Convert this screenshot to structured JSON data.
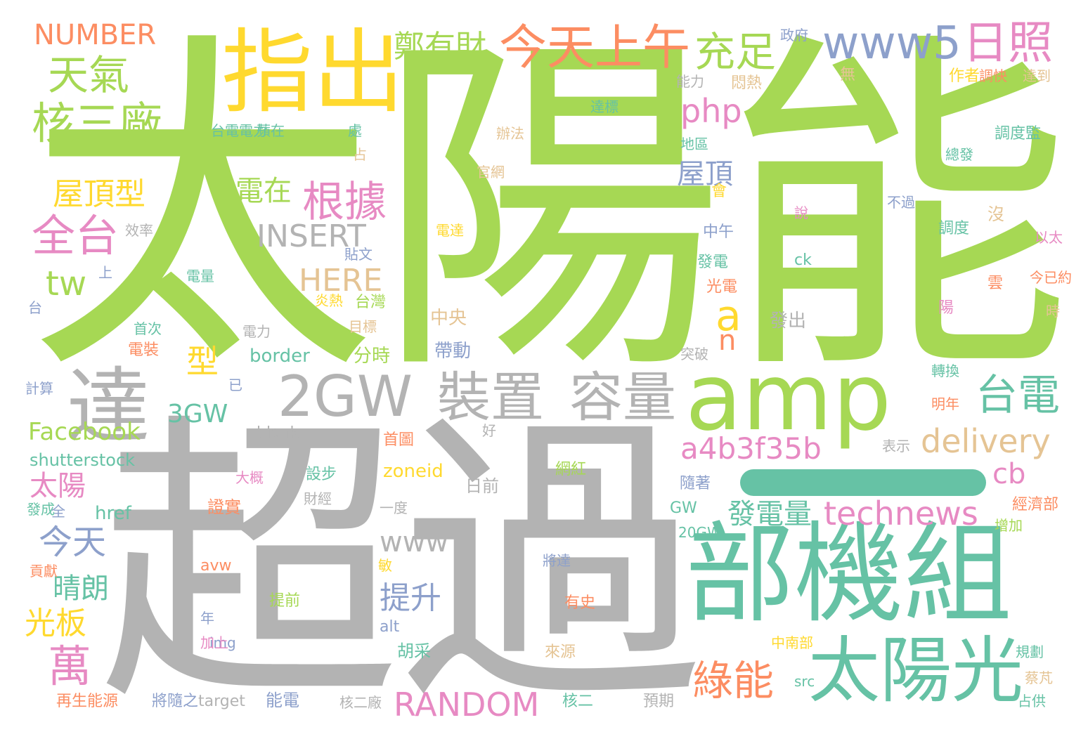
{
  "words": {
    "w1": "太陽能",
    "w2": "超過",
    "w3": "部機組",
    "w4": "指出",
    "w5": "amp",
    "w6": "達",
    "w7": "2GW",
    "w8": "裝置",
    "w9": "容量",
    "w10": "太陽光",
    "w11": "天氣",
    "w12": "核三廠",
    "w13": "今天上午",
    "w14": "充足",
    "w15": "www5",
    "w16": "日照",
    "w17": "NUMBER",
    "w18": "鄭有財",
    "w19": "php",
    "w20": "根據",
    "w21": "全台",
    "w22": "屋頂型",
    "w23": "電在",
    "w24": "INSERT",
    "w25": "HERE",
    "w26": "tw",
    "w27": "a",
    "w28": "n",
    "w29": "屋頂",
    "w30": "台電",
    "w31": "delivery",
    "w32": "a4b3f35b",
    "w33": "cb",
    "w34": "technews",
    "w35": "發電量",
    "w36": "太陽",
    "w37": "今天",
    "w38": "晴朗",
    "w39": "光板",
    "w40": "萬",
    "w41": "綠能",
    "w42": "RANDOM",
    "w43": "提升",
    "w44": "www",
    "w45": "3GW",
    "w46": "型",
    "w47": "Facebook",
    "w48": "shutterstock",
    "w49": "blank",
    "w50": "zoneid",
    "w51": "href",
    "w52": "border",
    "w53": "帶動",
    "w54": "分時",
    "w55": "中央",
    "w56": "台灣",
    "w57": "目標",
    "w58": "炎熱",
    "w59": "電裝",
    "w60": "首次",
    "w61": "電量",
    "w62": "台",
    "w63": "上",
    "w64": "效率",
    "w65": "計算",
    "w66": "已",
    "w67": "電力",
    "w68": "發出",
    "w69": "突破",
    "w70": "轉換",
    "w71": "明年",
    "w72": "好",
    "w73": "首圖",
    "w74": "表示",
    "w75": "設步",
    "w76": "大概",
    "w77": "網紅",
    "w78": "日前",
    "w79": "財經",
    "w80": "一度",
    "w81": "證實",
    "w82": "全",
    "w83": "發成",
    "w84": "隨著",
    "w85": "GW",
    "w86": "20GW",
    "w87": "將達",
    "w88": "avw",
    "w89": "敏",
    "w90": "貢獻",
    "w91": "提前",
    "w92": "有史",
    "w93": "年",
    "w94": "img",
    "w95": "alt",
    "w96": "胡采",
    "w97": "加上",
    "w98": "中南部",
    "w99": "來源",
    "w100": "再生能源",
    "w101": "src",
    "w102": "將隨之",
    "w103": "target",
    "w104": "能電",
    "w105": "核二廠",
    "w106": "核二",
    "w107": "預期",
    "w108": "規劃",
    "w109": "蔡芃",
    "w110": "占供",
    "w111": "經濟部",
    "w112": "增加",
    "w113": "政府",
    "w114": "能力",
    "w115": "悶熱",
    "w116": "無",
    "w117": "作者",
    "w118": "調快",
    "w119": "達到",
    "w120": "達標",
    "w121": "台電電力",
    "w122": "蘋在",
    "w123": "處",
    "w124": "占",
    "w125": "辦法",
    "w126": "調度監",
    "w127": "地區",
    "w128": "總發",
    "w129": "官網",
    "w130": "會",
    "w131": "不過",
    "w132": "說",
    "w133": "電達",
    "w134": "中午",
    "w135": "貼文",
    "w136": "調度",
    "w137": "沒",
    "w138": "以太",
    "w139": "ck",
    "w140": "發電",
    "w141": "光電",
    "w142": "雲",
    "w143": "今已約",
    "w144": "陽",
    "w145": "時"
  }
}
